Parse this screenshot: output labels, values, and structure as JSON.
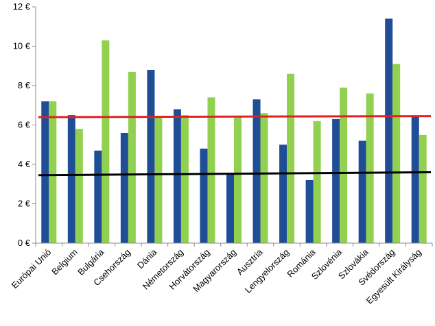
{
  "chart_data": {
    "type": "bar",
    "categories": [
      "Európai Unió",
      "Belgium",
      "Bulgária",
      "Csehország",
      "Dánia",
      "Németország",
      "Horvátország",
      "Magyarország",
      "Ausztria",
      "Lengyelország",
      "Románia",
      "Szlovénia",
      "Szlovákia",
      "Svédország",
      "Egyesült Királyság"
    ],
    "series": [
      {
        "color": "#1f4e96",
        "values": [
          7.2,
          6.5,
          4.7,
          5.6,
          8.8,
          6.8,
          4.8,
          3.5,
          7.3,
          5.0,
          3.2,
          6.3,
          5.2,
          11.4,
          6.4
        ]
      },
      {
        "color": "#92d050",
        "values": [
          7.2,
          5.8,
          10.3,
          8.7,
          6.4,
          6.5,
          7.4,
          6.4,
          6.6,
          8.6,
          6.2,
          7.9,
          7.6,
          9.1,
          5.5
        ]
      }
    ],
    "trend_lines": [
      {
        "color": "#e02020",
        "start": 6.4,
        "end": 6.45
      },
      {
        "color": "#000000",
        "start": 3.45,
        "end": 3.6
      }
    ],
    "ylim": [
      0,
      12
    ],
    "yticks": [
      "0 €",
      "2 €",
      "4 €",
      "6 €",
      "8 €",
      "10 €",
      "12 €"
    ],
    "grid": false,
    "legend": "none"
  }
}
